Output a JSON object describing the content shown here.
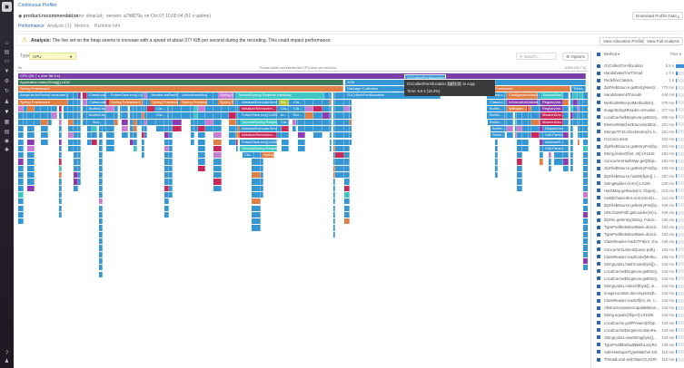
{
  "app": {
    "title": "Continuous Profiler",
    "service": "product-recommendation",
    "env": "env: shop.lat",
    "version": "version: a7fd879a",
    "started": "on Oct 07 10:05:04 (51 s uptime)",
    "download_label": "Download Profile Data"
  },
  "tabs": [
    {
      "label": "Performance",
      "active": true
    },
    {
      "label": "Analysis (1)"
    },
    {
      "label": "Metrics"
    },
    {
      "label": "Runtime Info"
    }
  ],
  "analysis": {
    "title": "Analysis:",
    "text": "The live set on the heap seems to increase with a speed of about 377 KiB per second during the recording. This could impact performance",
    "btn_alloc": "View Allocation Profile",
    "btn_full": "View Full Analysis"
  },
  "toolbar": {
    "type_label": "Type",
    "type_value": "CPU",
    "search_placeholder": "Search...",
    "options_label": "Options"
  },
  "flame": {
    "axis_start": "0s",
    "caption": "Frame width represents the CPU time per method",
    "axis_end": "100% (39.7 s)",
    "colors": {
      "purple": "#7b3fa8",
      "green": "#3e7a5a",
      "orange": "#e07f45",
      "blue": "#3597d3",
      "teal": "#3ec7c4",
      "pink": "#c77dd1",
      "crimson": "#c7295c",
      "violet": "#8a3cb0",
      "lime": "#b3c42c"
    },
    "frames": [
      "CPU (39.7 s over 66.5 s)",
      "Application.main(String[]):L#38",
      "JVM",
      "n():L#833",
      "Spring Framework",
      "Garbage Collection",
      "Spring Framework",
      "Threa...",
      "ArrayList.forEach(Consumer):L#...",
      "ClassLoad...",
      "FutureTask.run():L#264",
      "Iterator.forEachR...",
      "LinkedHashMa...",
      "Spring B...",
      "Tomcat/Spring Request Handling",
      "G1CollectForAllocation",
      "ClassLo...",
      "ConfigurationImplLo...",
      "Tomcat/Spri...",
      "Spring Framework",
      "ClassLoad...",
      "Spring Framework",
      "Spring Framework",
      "Spring Framew...",
      "Spring Fr...",
      "AbstractExecutorServic...",
      "INI...",
      "Cla...",
      "ClassLo...",
      "InformationValidator...",
      "RegistryIns...",
      "BuiltinCla...",
      "Cla...",
      "InitializerServiceIm...",
      "Cla...",
      "Cla...",
      "Builtin...",
      "Validator...",
      "RegistryIns...",
      "BuiltinCla...",
      "Cla...",
      "FutureTask.run():L#264",
      "Ar...",
      "Bui...",
      "Builtin...",
      "MissionDes...",
      "Buil...",
      "Tomcat/Spring Request...",
      "Cla...",
      "Builtin...",
      "MissionDes...",
      "AbstractExecutorServic...",
      "Builtin...",
      "Dispatcher...",
      "InitializerServiceIm...",
      "Sessi...",
      "XMLParse...",
      "FutureTask.run():L#264",
      "AbstractS...",
      "Tomcat/Spring Request...",
      "XMLParse...",
      "Cla...",
      "Spring..."
    ],
    "tooltip": {
      "hover_label": "G1CollectForAllocation",
      "name": "G1CollectForAllocation",
      "shortcut": "Ctrl + C",
      "copy_hint": "to copy",
      "time": "Time: 6.5 s (16.3%)"
    }
  },
  "methods": {
    "header_method": "Method",
    "header_time": "Time",
    "items": [
      {
        "name": "G1CollectForAllocation",
        "time": "6.5 s",
        "pct": 100
      },
      {
        "name": "HandshakeOneThread",
        "time": "1.2 s",
        "pct": 18
      },
      {
        "name": "RedefineClasses",
        "time": "1 s",
        "pct": 15
      },
      {
        "name": "ZipFile$Source.getEntryNext(I...",
        "time": "770 ms",
        "pct": 12
      },
      {
        "name": "HandshakeAllThreads",
        "time": "444 ms",
        "pct": 7
      },
      {
        "name": "MethodWriter.putMethodInfo(...",
        "time": "379 ms",
        "pct": 6
      },
      {
        "name": "ImageStringsReader.unmaske...",
        "time": "377 ms",
        "pct": 6
      },
      {
        "name": "LocalCache$Segment.getEntry...",
        "time": "356 ms",
        "pct": 5
      },
      {
        "name": "ElementMatcher$Junction$Dis...",
        "time": "331 ms",
        "pct": 5
      },
      {
        "name": "StringUTF16.checkIndex(int, b...",
        "time": "331 ms",
        "pct": 5
      },
      {
        "name": "G1Concurrent",
        "time": "322 ms",
        "pct": 5
      },
      {
        "name": "ZipFile$Source.getEntryPos(by...",
        "time": "304 ms",
        "pct": 5
      },
      {
        "name": "String.indexOf(int, int):L#1616",
        "time": "284 ms",
        "pct": 4
      },
      {
        "name": "ConcurrentHashMap.get(Obje...",
        "time": "284 ms",
        "pct": 4
      },
      {
        "name": "ZipFile$Source.getEntryPos(by...",
        "time": "263 ms",
        "pct": 4
      },
      {
        "name": "ZipFile$Source.hashN(byte[], i...",
        "time": "257 ms",
        "pct": 4
      },
      {
        "name": "StringBuilder.<init>():L#100",
        "time": "230 ms",
        "pct": 4
      },
      {
        "name": "HashMap.getNode(int, Object)...",
        "time": "215 ms",
        "pct": 3
      },
      {
        "name": "Sink$ChainedInt.<init>(Sink):L...",
        "time": "211 ms",
        "pct": 3
      },
      {
        "name": "ZipFile$Source.getEntryPos(by...",
        "time": "209 ms",
        "pct": 3
      },
      {
        "name": "URLClassPath.getLoader(int):L...",
        "time": "209 ms",
        "pct": 3
      },
      {
        "name": "ZipFile.getEntry(String, Functi...",
        "time": "195 ms",
        "pct": 3
      },
      {
        "name": "TypePool$AbstractBase.descri...",
        "time": "182 ms",
        "pct": 3
      },
      {
        "name": "TypePool$AbstractBase.descri...",
        "time": "182 ms",
        "pct": 3
      },
      {
        "name": "ClassReader.readUTF8(int, cha...",
        "time": "168 ms",
        "pct": 3
      },
      {
        "name": "ConcurrentLinkedQueue.poll()...",
        "time": "162 ms",
        "pct": 2
      },
      {
        "name": "ClassReader.readCode(Metho...",
        "time": "168 ms",
        "pct": 3
      },
      {
        "name": "StringLatin1.hashCode(byte[]):...",
        "time": "142 ms",
        "pct": 2
      },
      {
        "name": "LocalCache$Segment.getEntry...",
        "time": "142 ms",
        "pct": 2
      },
      {
        "name": "LocalCache$Segment.getEntry...",
        "time": "142 ms",
        "pct": 2
      },
      {
        "name": "StringLatin1.indexOf(byte[], in...",
        "time": "142 ms",
        "pct": 2
      },
      {
        "name": "ImageLocation.decompress(B...",
        "time": "142 ms",
        "pct": 2
      },
      {
        "name": "ClassReader.readUtf(int, int, c...",
        "time": "142 ms",
        "pct": 2
      },
      {
        "name": "AbstractAutowireCapableBean...",
        "time": "142 ms",
        "pct": 2
      },
      {
        "name": "String.equals(Object):L#1026",
        "time": "142 ms",
        "pct": 2
      },
      {
        "name": "LocalCache.getIfPresent(Obje...",
        "time": "142 ms",
        "pct": 2
      },
      {
        "name": "LocalCache$Segment.drainRe...",
        "time": "142 ms",
        "pct": 2
      },
      {
        "name": "StringLatin1.newString(byte[], ...",
        "time": "142 ms",
        "pct": 2
      },
      {
        "name": "TypePool$Default$WithLazyRe...",
        "time": "135 ms",
        "pct": 2
      },
      {
        "name": "SafeHasSuperTypeMatcher.saf...",
        "time": "115 ms",
        "pct": 2
      },
      {
        "name": "ThreadLocal.set(Object):L#230",
        "time": "115 ms",
        "pct": 2
      }
    ]
  }
}
